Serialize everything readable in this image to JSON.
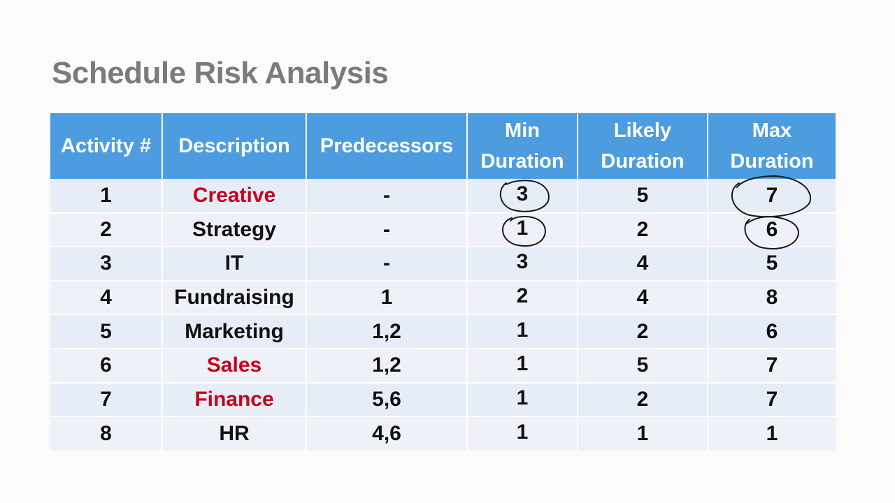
{
  "title": "Schedule Risk Analysis",
  "table": {
    "headers": {
      "activity": "Activity #",
      "description": "Description",
      "predecessors": "Predecessors",
      "min_line1": "Min",
      "min_line2": "Duration",
      "likely_line1": "Likely",
      "likely_line2": "Duration",
      "max_line1": "Max",
      "max_line2": "Duration"
    },
    "rows": [
      {
        "activity": "1",
        "description": "Creative",
        "highlight": true,
        "predecessors": "-",
        "min": "3",
        "likely": "5",
        "max": "7"
      },
      {
        "activity": "2",
        "description": "Strategy",
        "highlight": false,
        "predecessors": "-",
        "min": "1",
        "likely": "2",
        "max": "6"
      },
      {
        "activity": "3",
        "description": "IT",
        "highlight": false,
        "predecessors": "-",
        "min": "3",
        "likely": "4",
        "max": "5"
      },
      {
        "activity": "4",
        "description": "Fundraising",
        "highlight": false,
        "predecessors": "1",
        "min": "2",
        "likely": "4",
        "max": "8"
      },
      {
        "activity": "5",
        "description": "Marketing",
        "highlight": false,
        "predecessors": "1,2",
        "min": "1",
        "likely": "2",
        "max": "6"
      },
      {
        "activity": "6",
        "description": "Sales",
        "highlight": true,
        "predecessors": "1,2",
        "min": "1",
        "likely": "5",
        "max": "7"
      },
      {
        "activity": "7",
        "description": "Finance",
        "highlight": true,
        "predecessors": "5,6",
        "min": "1",
        "likely": "2",
        "max": "7"
      },
      {
        "activity": "8",
        "description": "HR",
        "highlight": false,
        "predecessors": "4,6",
        "min": "1",
        "likely": "1",
        "max": "1"
      }
    ]
  },
  "colors": {
    "header_bg": "#4e9ce0",
    "highlight_text": "#c8001e",
    "title_text": "#7b7b7b"
  }
}
